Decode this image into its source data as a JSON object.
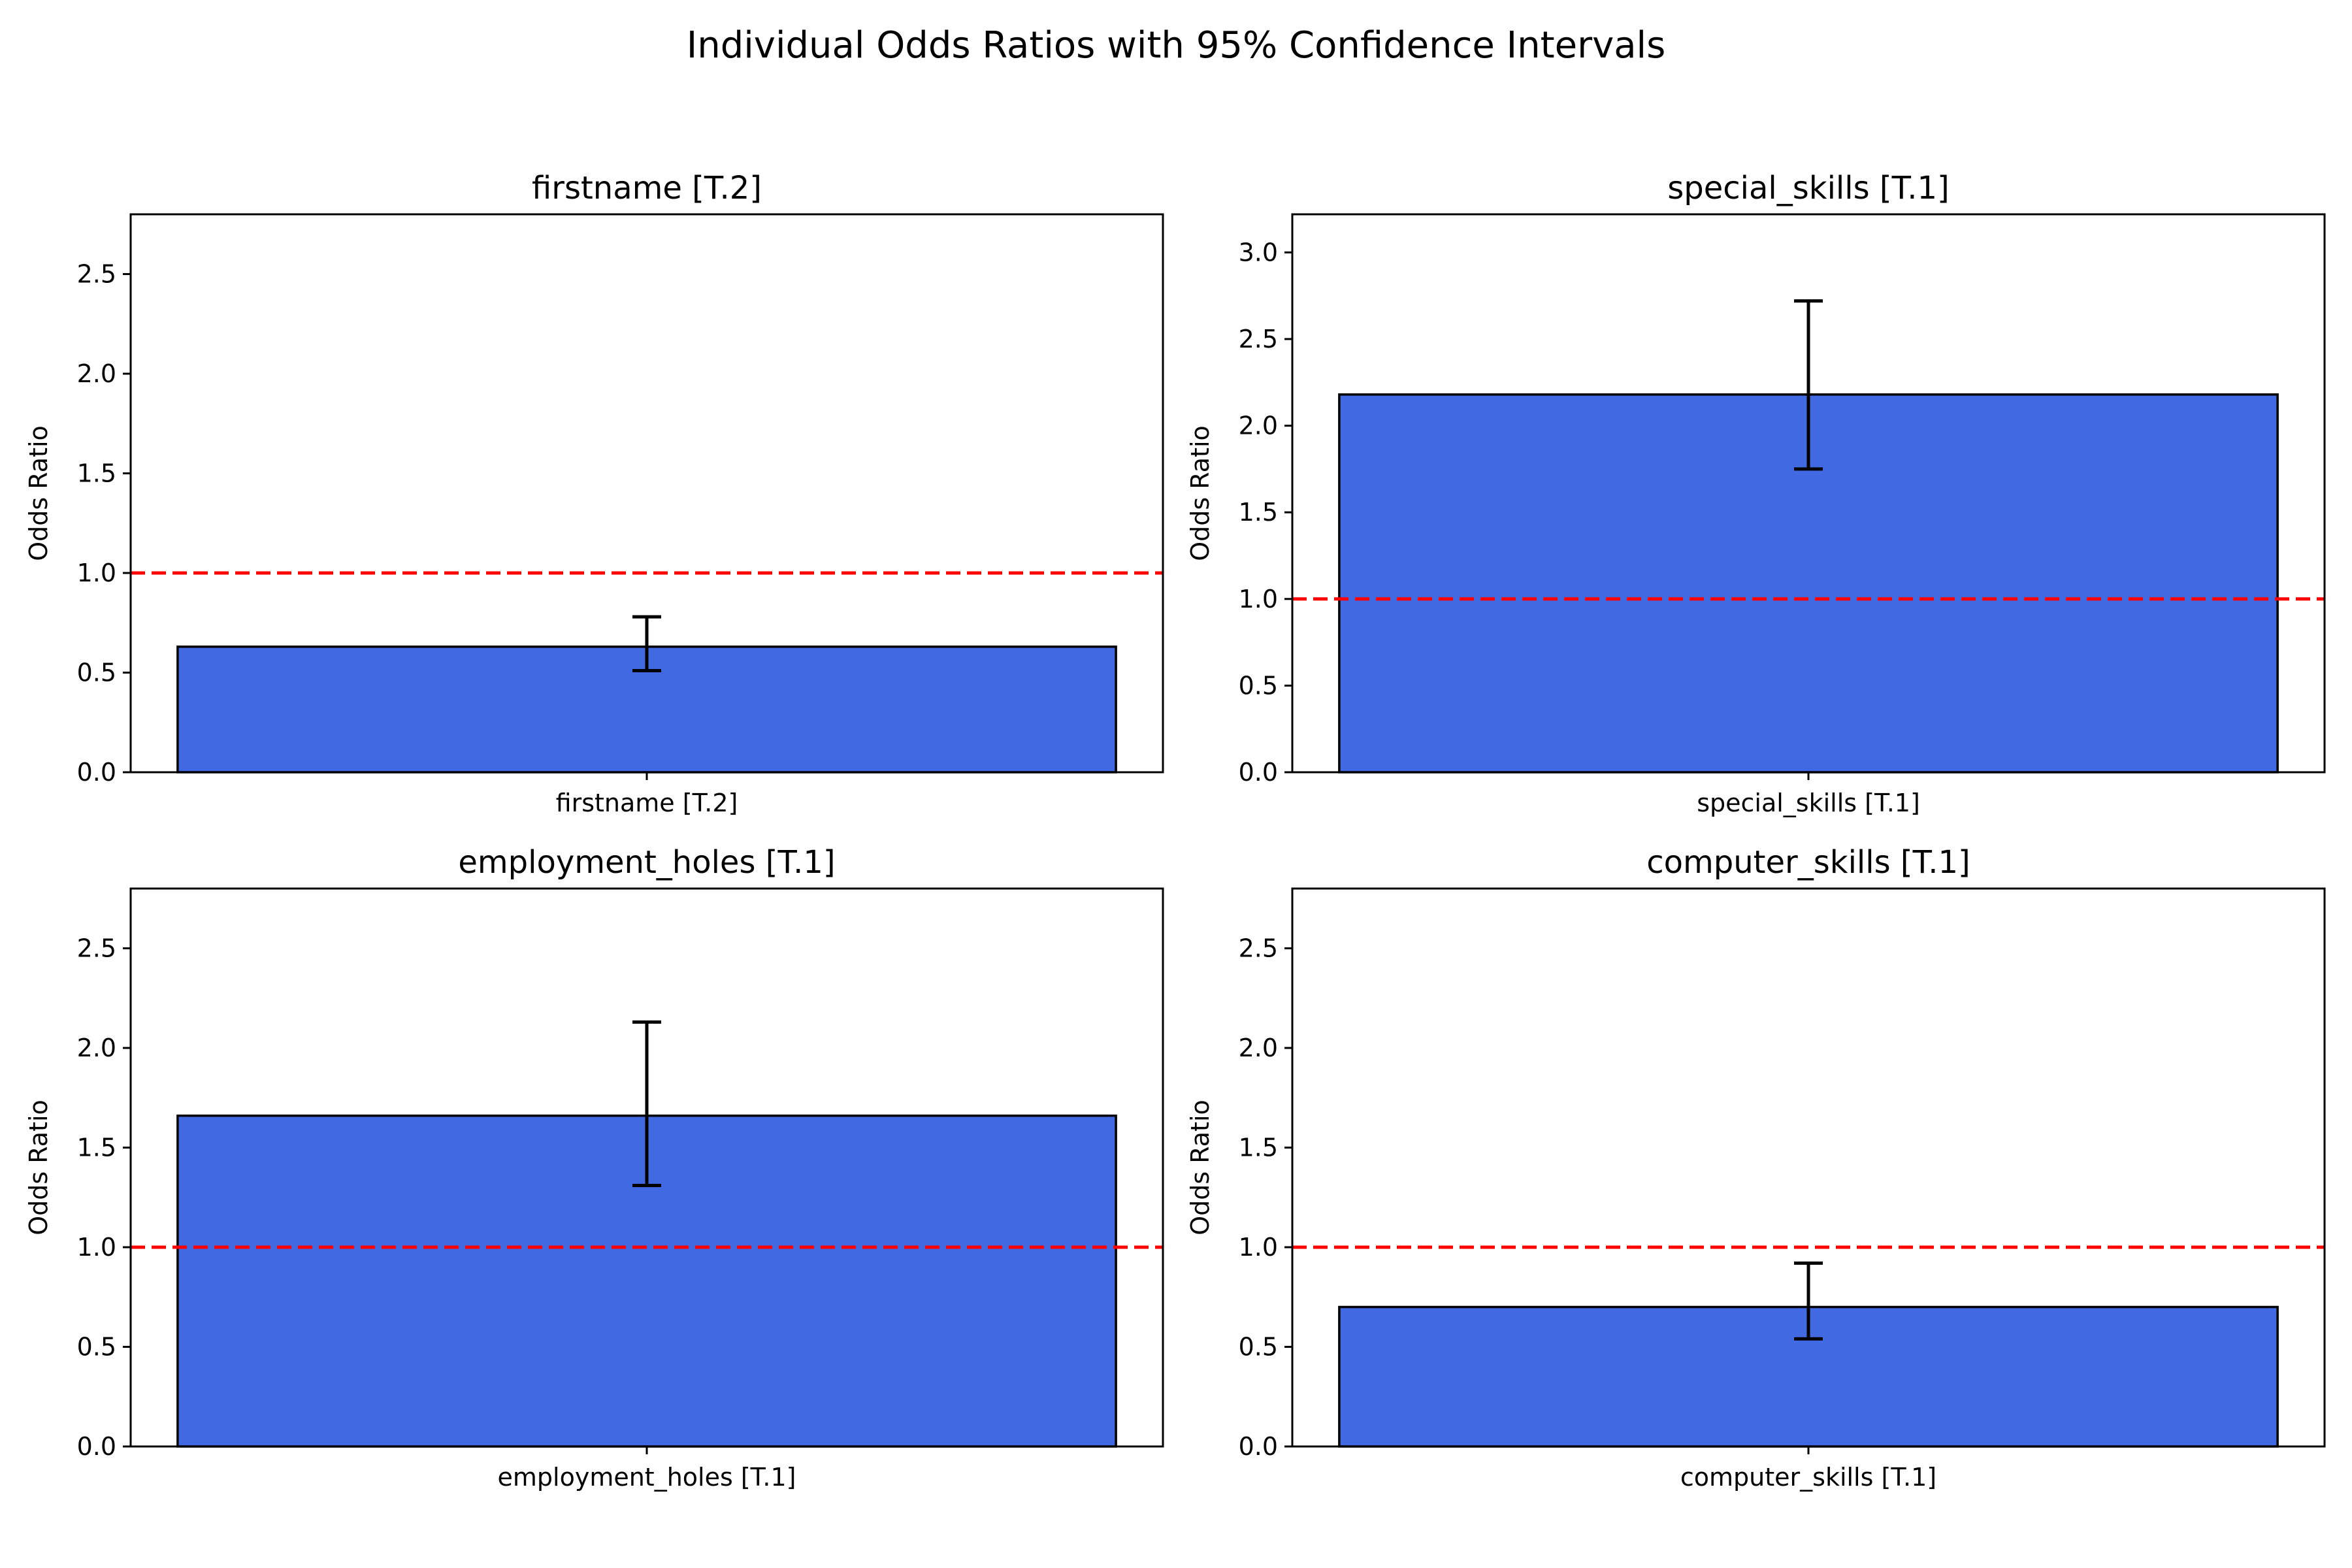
{
  "chart_data": {
    "title": "Individual Odds Ratios with 95% Confidence Intervals",
    "reference_line": {
      "y": 1.0,
      "color": "#ff0000",
      "style": "dashed"
    },
    "bar_color": "#4169e1",
    "panels": [
      {
        "type": "bar",
        "title": "firstname [T.2]",
        "categories": [
          "firstname [T.2]"
        ],
        "values": [
          0.63
        ],
        "ci_lower": [
          0.51
        ],
        "ci_upper": [
          0.78
        ],
        "ylabel": "Odds Ratio",
        "ylim": [
          0,
          2.8
        ],
        "yticks": [
          0.0,
          0.5,
          1.0,
          1.5,
          2.0,
          2.5
        ],
        "ytick_labels": [
          "0.0",
          "0.5",
          "1.0",
          "1.5",
          "2.0",
          "2.5"
        ]
      },
      {
        "type": "bar",
        "title": "special_skills [T.1]",
        "categories": [
          "special_skills [T.1]"
        ],
        "values": [
          2.18
        ],
        "ci_lower": [
          1.75
        ],
        "ci_upper": [
          2.72
        ],
        "ylabel": "Odds Ratio",
        "ylim": [
          0,
          3.22
        ],
        "yticks": [
          0.0,
          0.5,
          1.0,
          1.5,
          2.0,
          2.5,
          3.0
        ],
        "ytick_labels": [
          "0.0",
          "0.5",
          "1.0",
          "1.5",
          "2.0",
          "2.5",
          "3.0"
        ]
      },
      {
        "type": "bar",
        "title": "employment_holes [T.1]",
        "categories": [
          "employment_holes [T.1]"
        ],
        "values": [
          1.66
        ],
        "ci_lower": [
          1.31
        ],
        "ci_upper": [
          2.13
        ],
        "ylabel": "Odds Ratio",
        "ylim": [
          0,
          2.8
        ],
        "yticks": [
          0.0,
          0.5,
          1.0,
          1.5,
          2.0,
          2.5
        ],
        "ytick_labels": [
          "0.0",
          "0.5",
          "1.0",
          "1.5",
          "2.0",
          "2.5"
        ]
      },
      {
        "type": "bar",
        "title": "computer_skills [T.1]",
        "categories": [
          "computer_skills [T.1]"
        ],
        "values": [
          0.7
        ],
        "ci_lower": [
          0.54
        ],
        "ci_upper": [
          0.92
        ],
        "ylabel": "Odds Ratio",
        "ylim": [
          0,
          2.8
        ],
        "yticks": [
          0.0,
          0.5,
          1.0,
          1.5,
          2.0,
          2.5
        ],
        "ytick_labels": [
          "0.0",
          "0.5",
          "1.0",
          "1.5",
          "2.0",
          "2.5"
        ]
      }
    ]
  }
}
